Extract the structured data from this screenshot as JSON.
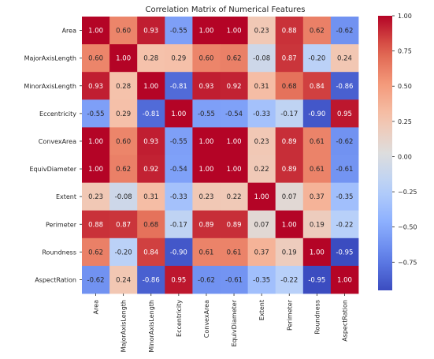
{
  "chart_data": {
    "type": "heatmap",
    "title": "Correlation Matrix of Numerical Features",
    "row_labels": [
      "Area",
      "MajorAxisLength",
      "MinorAxisLength",
      "Eccentricity",
      "ConvexArea",
      "EquivDiameter",
      "Extent",
      "Perimeter",
      "Roundness",
      "AspectRation"
    ],
    "col_labels": [
      "Area",
      "MajorAxisLength",
      "MinorAxisLength",
      "Eccentricity",
      "ConvexArea",
      "EquivDiameter",
      "Extent",
      "Perimeter",
      "Roundness",
      "AspectRation"
    ],
    "values": [
      [
        1.0,
        0.6,
        0.93,
        -0.55,
        1.0,
        1.0,
        0.23,
        0.88,
        0.62,
        -0.62
      ],
      [
        0.6,
        1.0,
        0.28,
        0.29,
        0.6,
        0.62,
        -0.08,
        0.87,
        -0.2,
        0.24
      ],
      [
        0.93,
        0.28,
        1.0,
        -0.81,
        0.93,
        0.92,
        0.31,
        0.68,
        0.84,
        -0.86
      ],
      [
        -0.55,
        0.29,
        -0.81,
        1.0,
        -0.55,
        -0.54,
        -0.33,
        -0.17,
        -0.9,
        0.95
      ],
      [
        1.0,
        0.6,
        0.93,
        -0.55,
        1.0,
        1.0,
        0.23,
        0.89,
        0.61,
        -0.62
      ],
      [
        1.0,
        0.62,
        0.92,
        -0.54,
        1.0,
        1.0,
        0.22,
        0.89,
        0.61,
        -0.61
      ],
      [
        0.23,
        -0.08,
        0.31,
        -0.33,
        0.23,
        0.22,
        1.0,
        0.07,
        0.37,
        -0.35
      ],
      [
        0.88,
        0.87,
        0.68,
        -0.17,
        0.89,
        0.89,
        0.07,
        1.0,
        0.19,
        -0.22
      ],
      [
        0.62,
        -0.2,
        0.84,
        -0.9,
        0.61,
        0.61,
        0.37,
        0.19,
        1.0,
        -0.95
      ],
      [
        -0.62,
        0.24,
        -0.86,
        0.95,
        -0.62,
        -0.61,
        -0.35,
        -0.22,
        -0.95,
        1.0
      ]
    ],
    "colormap": "coolwarm",
    "vmin": -0.95,
    "vmax": 1.0,
    "colorbar_ticks": [
      1.0,
      0.75,
      0.5,
      0.25,
      0.0,
      -0.25,
      -0.5,
      -0.75
    ],
    "colorbar_tick_labels": [
      "1.00",
      "0.75",
      "0.50",
      "0.25",
      "0.00",
      "−0.25",
      "−0.50",
      "−0.75"
    ],
    "annot_format": "0.00",
    "legend": "colorbar-right",
    "grid": false
  }
}
